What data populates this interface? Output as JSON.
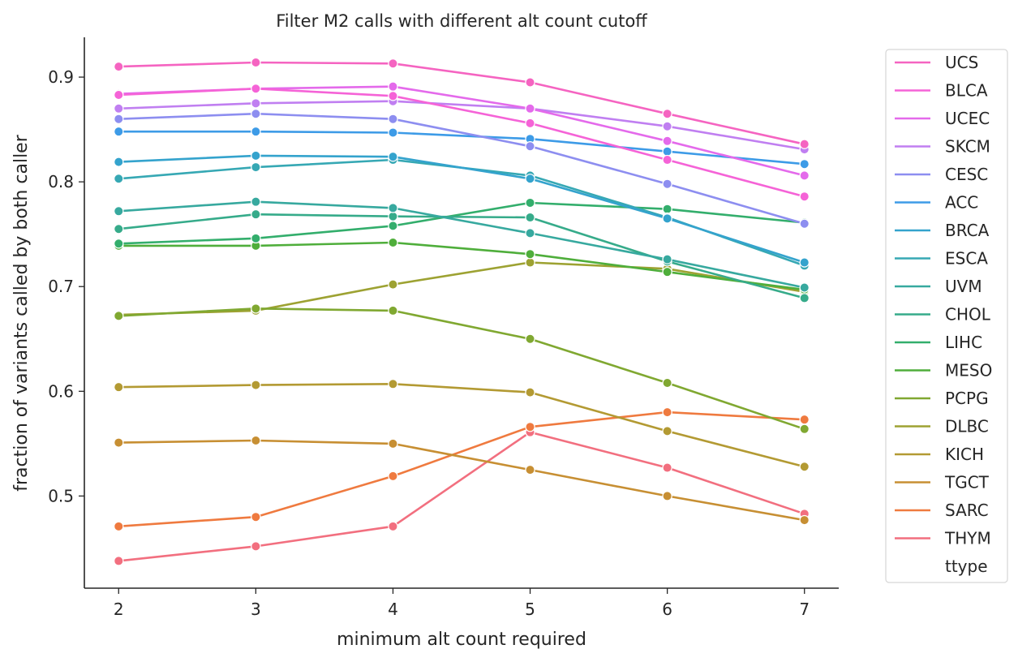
{
  "chart_data": {
    "type": "line",
    "title": "Filter M2 calls with different alt count cutoff",
    "xlabel": "minimum alt count required",
    "ylabel": "fraction of variants called by both caller",
    "x": [
      2,
      3,
      4,
      5,
      6,
      7
    ],
    "xlim": [
      1.75,
      7.25
    ],
    "ylim": [
      0.412,
      0.938
    ],
    "xticks": [
      "2",
      "3",
      "4",
      "5",
      "6",
      "7"
    ],
    "yticks": [
      0.5,
      0.6,
      0.7,
      0.8,
      0.9
    ],
    "ytick_labels": [
      "0.5",
      "0.6",
      "0.7",
      "0.8",
      "0.9"
    ],
    "legend_title": "ttype",
    "legend_position": "outside-right",
    "grid": false,
    "series": [
      {
        "name": "UCS",
        "color": "#f564c1",
        "values": [
          0.91,
          0.914,
          0.913,
          0.895,
          0.865,
          0.836
        ]
      },
      {
        "name": "BLCA",
        "color": "#f563d7",
        "values": [
          0.883,
          0.889,
          0.882,
          0.856,
          0.821,
          0.786
        ]
      },
      {
        "name": "UCEC",
        "color": "#e46aeb",
        "values": [
          0.884,
          0.889,
          0.891,
          0.87,
          0.839,
          0.806
        ]
      },
      {
        "name": "SKCM",
        "color": "#c07ff1",
        "values": [
          0.87,
          0.875,
          0.877,
          0.87,
          0.853,
          0.831
        ]
      },
      {
        "name": "CESC",
        "color": "#8d8ef0",
        "values": [
          0.86,
          0.865,
          0.86,
          0.834,
          0.798,
          0.76
        ]
      },
      {
        "name": "ACC",
        "color": "#3d9be7",
        "values": [
          0.848,
          0.848,
          0.847,
          0.841,
          0.829,
          0.817
        ]
      },
      {
        "name": "BRCA",
        "color": "#34a3cd",
        "values": [
          0.819,
          0.825,
          0.824,
          0.803,
          0.765,
          0.723
        ]
      },
      {
        "name": "ESCA",
        "color": "#36a8b4",
        "values": [
          0.803,
          0.814,
          0.821,
          0.806,
          0.766,
          0.72
        ]
      },
      {
        "name": "UVM",
        "color": "#37a99f",
        "values": [
          0.772,
          0.781,
          0.775,
          0.751,
          0.726,
          0.699
        ]
      },
      {
        "name": "CHOL",
        "color": "#36ab8a",
        "values": [
          0.755,
          0.769,
          0.767,
          0.766,
          0.724,
          0.689
        ]
      },
      {
        "name": "LIHC",
        "color": "#33ae6c",
        "values": [
          0.741,
          0.746,
          0.758,
          0.78,
          0.774,
          0.761
        ]
      },
      {
        "name": "MESO",
        "color": "#4fae3b",
        "values": [
          0.739,
          0.739,
          0.742,
          0.731,
          0.714,
          0.697
        ]
      },
      {
        "name": "PCPG",
        "color": "#80a831",
        "values": [
          0.672,
          0.679,
          0.677,
          0.65,
          0.608,
          0.564
        ]
      },
      {
        "name": "DLBC",
        "color": "#9da232",
        "values": [
          0.673,
          0.677,
          0.702,
          0.723,
          0.717,
          0.695
        ]
      },
      {
        "name": "KICH",
        "color": "#b39a33",
        "values": [
          0.604,
          0.606,
          0.607,
          0.599,
          0.562,
          0.528
        ]
      },
      {
        "name": "TGCT",
        "color": "#c78f33",
        "values": [
          0.551,
          0.553,
          0.55,
          0.525,
          0.5,
          0.477
        ]
      },
      {
        "name": "SARC",
        "color": "#ef7a3f",
        "values": [
          0.471,
          0.48,
          0.519,
          0.566,
          0.58,
          0.573
        ]
      },
      {
        "name": "THYM",
        "color": "#f26f7f",
        "values": [
          0.438,
          0.452,
          0.471,
          0.561,
          0.527,
          0.483
        ]
      }
    ]
  }
}
